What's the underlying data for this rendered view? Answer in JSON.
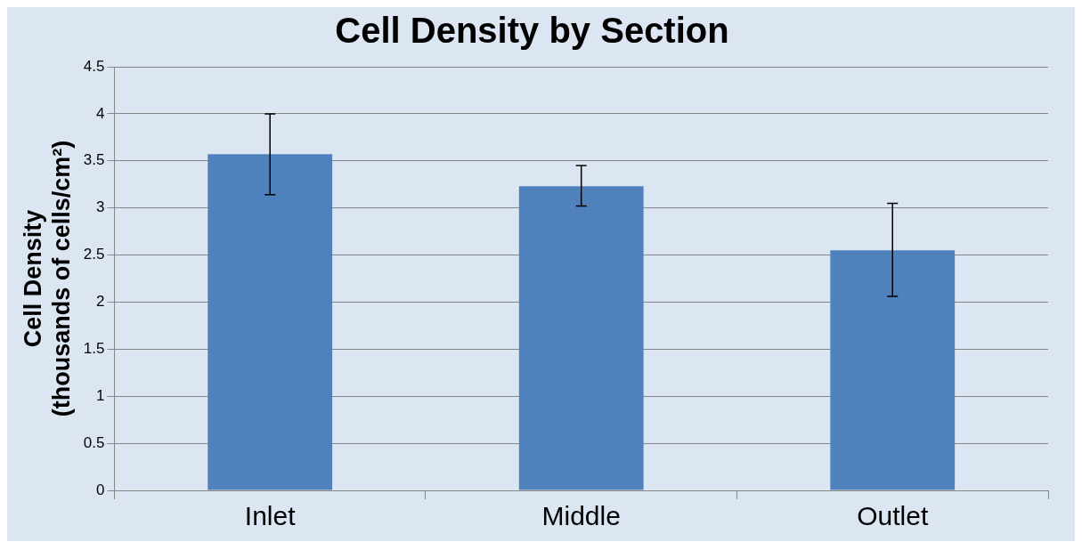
{
  "chart_data": {
    "type": "bar",
    "title": "Cell Density by Section",
    "ylabel": "Cell Density\n(thousands of cells/cm²)",
    "categories": [
      "Inlet",
      "Middle",
      "Outlet"
    ],
    "values": [
      3.57,
      3.23,
      2.55
    ],
    "errors": [
      [
        3.14,
        4.0
      ],
      [
        3.02,
        3.45
      ],
      [
        2.06,
        3.05
      ]
    ],
    "color": "#4f81bd",
    "ylim": [
      0,
      4.5
    ],
    "yticks": [
      0,
      0.5,
      1,
      1.5,
      2,
      2.5,
      3,
      3.5,
      4,
      4.5
    ],
    "grid": "y",
    "legend": false
  }
}
